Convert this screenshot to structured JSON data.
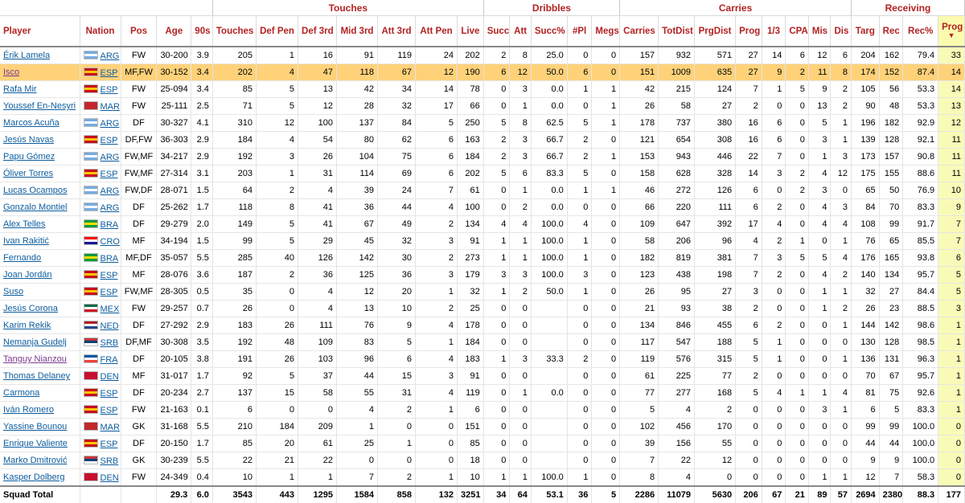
{
  "groups": {
    "touches": "Touches",
    "dribbles": "Dribbles",
    "carries": "Carries",
    "receiving": "Receiving"
  },
  "columns": {
    "player": "Player",
    "nation": "Nation",
    "pos": "Pos",
    "age": "Age",
    "nineties": "90s",
    "touches": "Touches",
    "def_pen": "Def Pen",
    "def_3rd": "Def 3rd",
    "mid_3rd": "Mid 3rd",
    "att_3rd": "Att 3rd",
    "att_pen": "Att Pen",
    "live": "Live",
    "succ": "Succ",
    "att": "Att",
    "succ_pct": "Succ%",
    "num_pl": "#Pl",
    "megs": "Megs",
    "carries": "Carries",
    "totdist": "TotDist",
    "prgdist": "PrgDist",
    "prog": "Prog",
    "third": "1/3",
    "cpa": "CPA",
    "mis": "Mis",
    "dis": "Dis",
    "targ": "Targ",
    "rec": "Rec",
    "rec_pct": "Rec%",
    "rprog": "Prog",
    "sort_arrow": "▼"
  },
  "flag_colors": {
    "ARG": [
      "#74acdf",
      "#ffffff",
      "#74acdf"
    ],
    "ESP": [
      "#c60b1e",
      "#ffc400",
      "#c60b1e"
    ],
    "MAR": [
      "#c1272d",
      "#c1272d",
      "#c1272d"
    ],
    "BRA": [
      "#009c3b",
      "#ffdf00",
      "#009c3b"
    ],
    "CRO": [
      "#ff0000",
      "#ffffff",
      "#171796"
    ],
    "MEX": [
      "#006847",
      "#ffffff",
      "#ce1126"
    ],
    "NED": [
      "#ae1c28",
      "#ffffff",
      "#21468b"
    ],
    "SRB": [
      "#c6363c",
      "#0c4076",
      "#ffffff"
    ],
    "FRA": [
      "#0055a4",
      "#ffffff",
      "#ef4135"
    ],
    "DEN": [
      "#c8102e",
      "#c8102e",
      "#c8102e"
    ]
  },
  "rows": [
    [
      "Érik Lamela",
      "ARG",
      "FW",
      "30-200",
      "3.9",
      "205",
      "1",
      "16",
      "91",
      "119",
      "24",
      "202",
      "2",
      "8",
      "25.0",
      "0",
      "0",
      "157",
      "932",
      "571",
      "27",
      "14",
      "6",
      "12",
      "6",
      "204",
      "162",
      "79.4",
      "33"
    ],
    [
      "Isco",
      "ESP",
      "MF,FW",
      "30-152",
      "3.4",
      "202",
      "4",
      "47",
      "118",
      "67",
      "12",
      "190",
      "6",
      "12",
      "50.0",
      "6",
      "0",
      "151",
      "1009",
      "635",
      "27",
      "9",
      "2",
      "11",
      "8",
      "174",
      "152",
      "87.4",
      "14"
    ],
    [
      "Rafa Mir",
      "ESP",
      "FW",
      "25-094",
      "3.4",
      "85",
      "5",
      "13",
      "42",
      "34",
      "14",
      "78",
      "0",
      "3",
      "0.0",
      "1",
      "1",
      "42",
      "215",
      "124",
      "7",
      "1",
      "5",
      "9",
      "2",
      "105",
      "56",
      "53.3",
      "14"
    ],
    [
      "Youssef En-Nesyri",
      "MAR",
      "FW",
      "25-111",
      "2.5",
      "71",
      "5",
      "12",
      "28",
      "32",
      "17",
      "66",
      "0",
      "1",
      "0.0",
      "0",
      "1",
      "26",
      "58",
      "27",
      "2",
      "0",
      "0",
      "13",
      "2",
      "90",
      "48",
      "53.3",
      "13"
    ],
    [
      "Marcos Acuña",
      "ARG",
      "DF",
      "30-327",
      "4.1",
      "310",
      "12",
      "100",
      "137",
      "84",
      "5",
      "250",
      "5",
      "8",
      "62.5",
      "5",
      "1",
      "178",
      "737",
      "380",
      "16",
      "6",
      "0",
      "5",
      "1",
      "196",
      "182",
      "92.9",
      "12"
    ],
    [
      "Jesús Navas",
      "ESP",
      "DF,FW",
      "36-303",
      "2.9",
      "184",
      "4",
      "54",
      "80",
      "62",
      "6",
      "163",
      "2",
      "3",
      "66.7",
      "2",
      "0",
      "121",
      "654",
      "308",
      "16",
      "6",
      "0",
      "3",
      "1",
      "139",
      "128",
      "92.1",
      "11"
    ],
    [
      "Papu Gómez",
      "ARG",
      "FW,MF",
      "34-217",
      "2.9",
      "192",
      "3",
      "26",
      "104",
      "75",
      "6",
      "184",
      "2",
      "3",
      "66.7",
      "2",
      "1",
      "153",
      "943",
      "446",
      "22",
      "7",
      "0",
      "1",
      "3",
      "173",
      "157",
      "90.8",
      "11"
    ],
    [
      "Óliver Torres",
      "ESP",
      "FW,MF",
      "27-314",
      "3.1",
      "203",
      "1",
      "31",
      "114",
      "69",
      "6",
      "202",
      "5",
      "6",
      "83.3",
      "5",
      "0",
      "158",
      "628",
      "328",
      "14",
      "3",
      "2",
      "4",
      "12",
      "175",
      "155",
      "88.6",
      "11"
    ],
    [
      "Lucas Ocampos",
      "ARG",
      "FW,DF",
      "28-071",
      "1.5",
      "64",
      "2",
      "4",
      "39",
      "24",
      "7",
      "61",
      "0",
      "1",
      "0.0",
      "1",
      "1",
      "46",
      "272",
      "126",
      "6",
      "0",
      "2",
      "3",
      "0",
      "65",
      "50",
      "76.9",
      "10"
    ],
    [
      "Gonzalo Montiel",
      "ARG",
      "DF",
      "25-262",
      "1.7",
      "118",
      "8",
      "41",
      "36",
      "44",
      "4",
      "100",
      "0",
      "2",
      "0.0",
      "0",
      "0",
      "66",
      "220",
      "111",
      "6",
      "2",
      "0",
      "4",
      "3",
      "84",
      "70",
      "83.3",
      "9"
    ],
    [
      "Alex Telles",
      "BRA",
      "DF",
      "29-279",
      "2.0",
      "149",
      "5",
      "41",
      "67",
      "49",
      "2",
      "134",
      "4",
      "4",
      "100.0",
      "4",
      "0",
      "109",
      "647",
      "392",
      "17",
      "4",
      "0",
      "4",
      "4",
      "108",
      "99",
      "91.7",
      "7"
    ],
    [
      "Ivan Rakitić",
      "CRO",
      "MF",
      "34-194",
      "1.5",
      "99",
      "5",
      "29",
      "45",
      "32",
      "3",
      "91",
      "1",
      "1",
      "100.0",
      "1",
      "0",
      "58",
      "206",
      "96",
      "4",
      "2",
      "1",
      "0",
      "1",
      "76",
      "65",
      "85.5",
      "7"
    ],
    [
      "Fernando",
      "BRA",
      "MF,DF",
      "35-057",
      "5.5",
      "285",
      "40",
      "126",
      "142",
      "30",
      "2",
      "273",
      "1",
      "1",
      "100.0",
      "1",
      "0",
      "182",
      "819",
      "381",
      "7",
      "3",
      "5",
      "5",
      "4",
      "176",
      "165",
      "93.8",
      "6"
    ],
    [
      "Joan Jordán",
      "ESP",
      "MF",
      "28-076",
      "3.6",
      "187",
      "2",
      "36",
      "125",
      "36",
      "3",
      "179",
      "3",
      "3",
      "100.0",
      "3",
      "0",
      "123",
      "438",
      "198",
      "7",
      "2",
      "0",
      "4",
      "2",
      "140",
      "134",
      "95.7",
      "5"
    ],
    [
      "Suso",
      "ESP",
      "FW,MF",
      "28-305",
      "0.5",
      "35",
      "0",
      "4",
      "12",
      "20",
      "1",
      "32",
      "1",
      "2",
      "50.0",
      "1",
      "0",
      "26",
      "95",
      "27",
      "3",
      "0",
      "0",
      "1",
      "1",
      "32",
      "27",
      "84.4",
      "5"
    ],
    [
      "Jesús Corona",
      "MEX",
      "FW",
      "29-257",
      "0.7",
      "26",
      "0",
      "4",
      "13",
      "10",
      "2",
      "25",
      "0",
      "0",
      "",
      "0",
      "0",
      "21",
      "93",
      "38",
      "2",
      "0",
      "0",
      "1",
      "2",
      "26",
      "23",
      "88.5",
      "3"
    ],
    [
      "Karim Rekik",
      "NED",
      "DF",
      "27-292",
      "2.9",
      "183",
      "26",
      "111",
      "76",
      "9",
      "4",
      "178",
      "0",
      "0",
      "",
      "0",
      "0",
      "134",
      "846",
      "455",
      "6",
      "2",
      "0",
      "0",
      "1",
      "144",
      "142",
      "98.6",
      "1"
    ],
    [
      "Nemanja Gudelj",
      "SRB",
      "DF,MF",
      "30-308",
      "3.5",
      "192",
      "48",
      "109",
      "83",
      "5",
      "1",
      "184",
      "0",
      "0",
      "",
      "0",
      "0",
      "117",
      "547",
      "188",
      "5",
      "1",
      "0",
      "0",
      "0",
      "130",
      "128",
      "98.5",
      "1"
    ],
    [
      "Tanguy Nianzou",
      "FRA",
      "DF",
      "20-105",
      "3.8",
      "191",
      "26",
      "103",
      "96",
      "6",
      "4",
      "183",
      "1",
      "3",
      "33.3",
      "2",
      "0",
      "119",
      "576",
      "315",
      "5",
      "1",
      "0",
      "0",
      "1",
      "136",
      "131",
      "96.3",
      "1"
    ],
    [
      "Thomas Delaney",
      "DEN",
      "MF",
      "31-017",
      "1.7",
      "92",
      "5",
      "37",
      "44",
      "15",
      "3",
      "91",
      "0",
      "0",
      "",
      "0",
      "0",
      "61",
      "225",
      "77",
      "2",
      "0",
      "0",
      "0",
      "0",
      "70",
      "67",
      "95.7",
      "1"
    ],
    [
      "Carmona",
      "ESP",
      "DF",
      "20-234",
      "2.7",
      "137",
      "15",
      "58",
      "55",
      "31",
      "4",
      "119",
      "0",
      "1",
      "0.0",
      "0",
      "0",
      "77",
      "277",
      "168",
      "5",
      "4",
      "1",
      "1",
      "4",
      "81",
      "75",
      "92.6",
      "1"
    ],
    [
      "Iván Romero",
      "ESP",
      "FW",
      "21-163",
      "0.1",
      "6",
      "0",
      "0",
      "4",
      "2",
      "1",
      "6",
      "0",
      "0",
      "",
      "0",
      "0",
      "5",
      "4",
      "2",
      "0",
      "0",
      "0",
      "3",
      "1",
      "6",
      "5",
      "83.3",
      "1"
    ],
    [
      "Yassine Bounou",
      "MAR",
      "GK",
      "31-168",
      "5.5",
      "210",
      "184",
      "209",
      "1",
      "0",
      "0",
      "151",
      "0",
      "0",
      "",
      "0",
      "0",
      "102",
      "456",
      "170",
      "0",
      "0",
      "0",
      "0",
      "0",
      "99",
      "99",
      "100.0",
      "0"
    ],
    [
      "Enrique Valiente",
      "ESP",
      "DF",
      "20-150",
      "1.7",
      "85",
      "20",
      "61",
      "25",
      "1",
      "0",
      "85",
      "0",
      "0",
      "",
      "0",
      "0",
      "39",
      "156",
      "55",
      "0",
      "0",
      "0",
      "0",
      "0",
      "44",
      "44",
      "100.0",
      "0"
    ],
    [
      "Marko Dmitrović",
      "SRB",
      "GK",
      "30-239",
      "5.5",
      "22",
      "21",
      "22",
      "0",
      "0",
      "0",
      "18",
      "0",
      "0",
      "",
      "0",
      "0",
      "7",
      "22",
      "12",
      "0",
      "0",
      "0",
      "0",
      "0",
      "9",
      "9",
      "100.0",
      "0"
    ],
    [
      "Kasper Dolberg",
      "DEN",
      "FW",
      "24-349",
      "0.4",
      "10",
      "1",
      "1",
      "7",
      "2",
      "1",
      "10",
      "1",
      "1",
      "100.0",
      "1",
      "0",
      "8",
      "4",
      "0",
      "0",
      "0",
      "0",
      "1",
      "1",
      "12",
      "7",
      "58.3",
      "0"
    ]
  ],
  "highlight_row": "Isco",
  "visited_rows": [
    "Isco",
    "Tanguy Nianzou"
  ],
  "total": [
    "Squad Total",
    "",
    "",
    "29.3",
    "6.0",
    "3543",
    "443",
    "1295",
    "1584",
    "858",
    "132",
    "3251",
    "34",
    "64",
    "53.1",
    "36",
    "5",
    "2286",
    "11079",
    "5630",
    "206",
    "67",
    "21",
    "89",
    "57",
    "2694",
    "2380",
    "88.3",
    "177"
  ]
}
